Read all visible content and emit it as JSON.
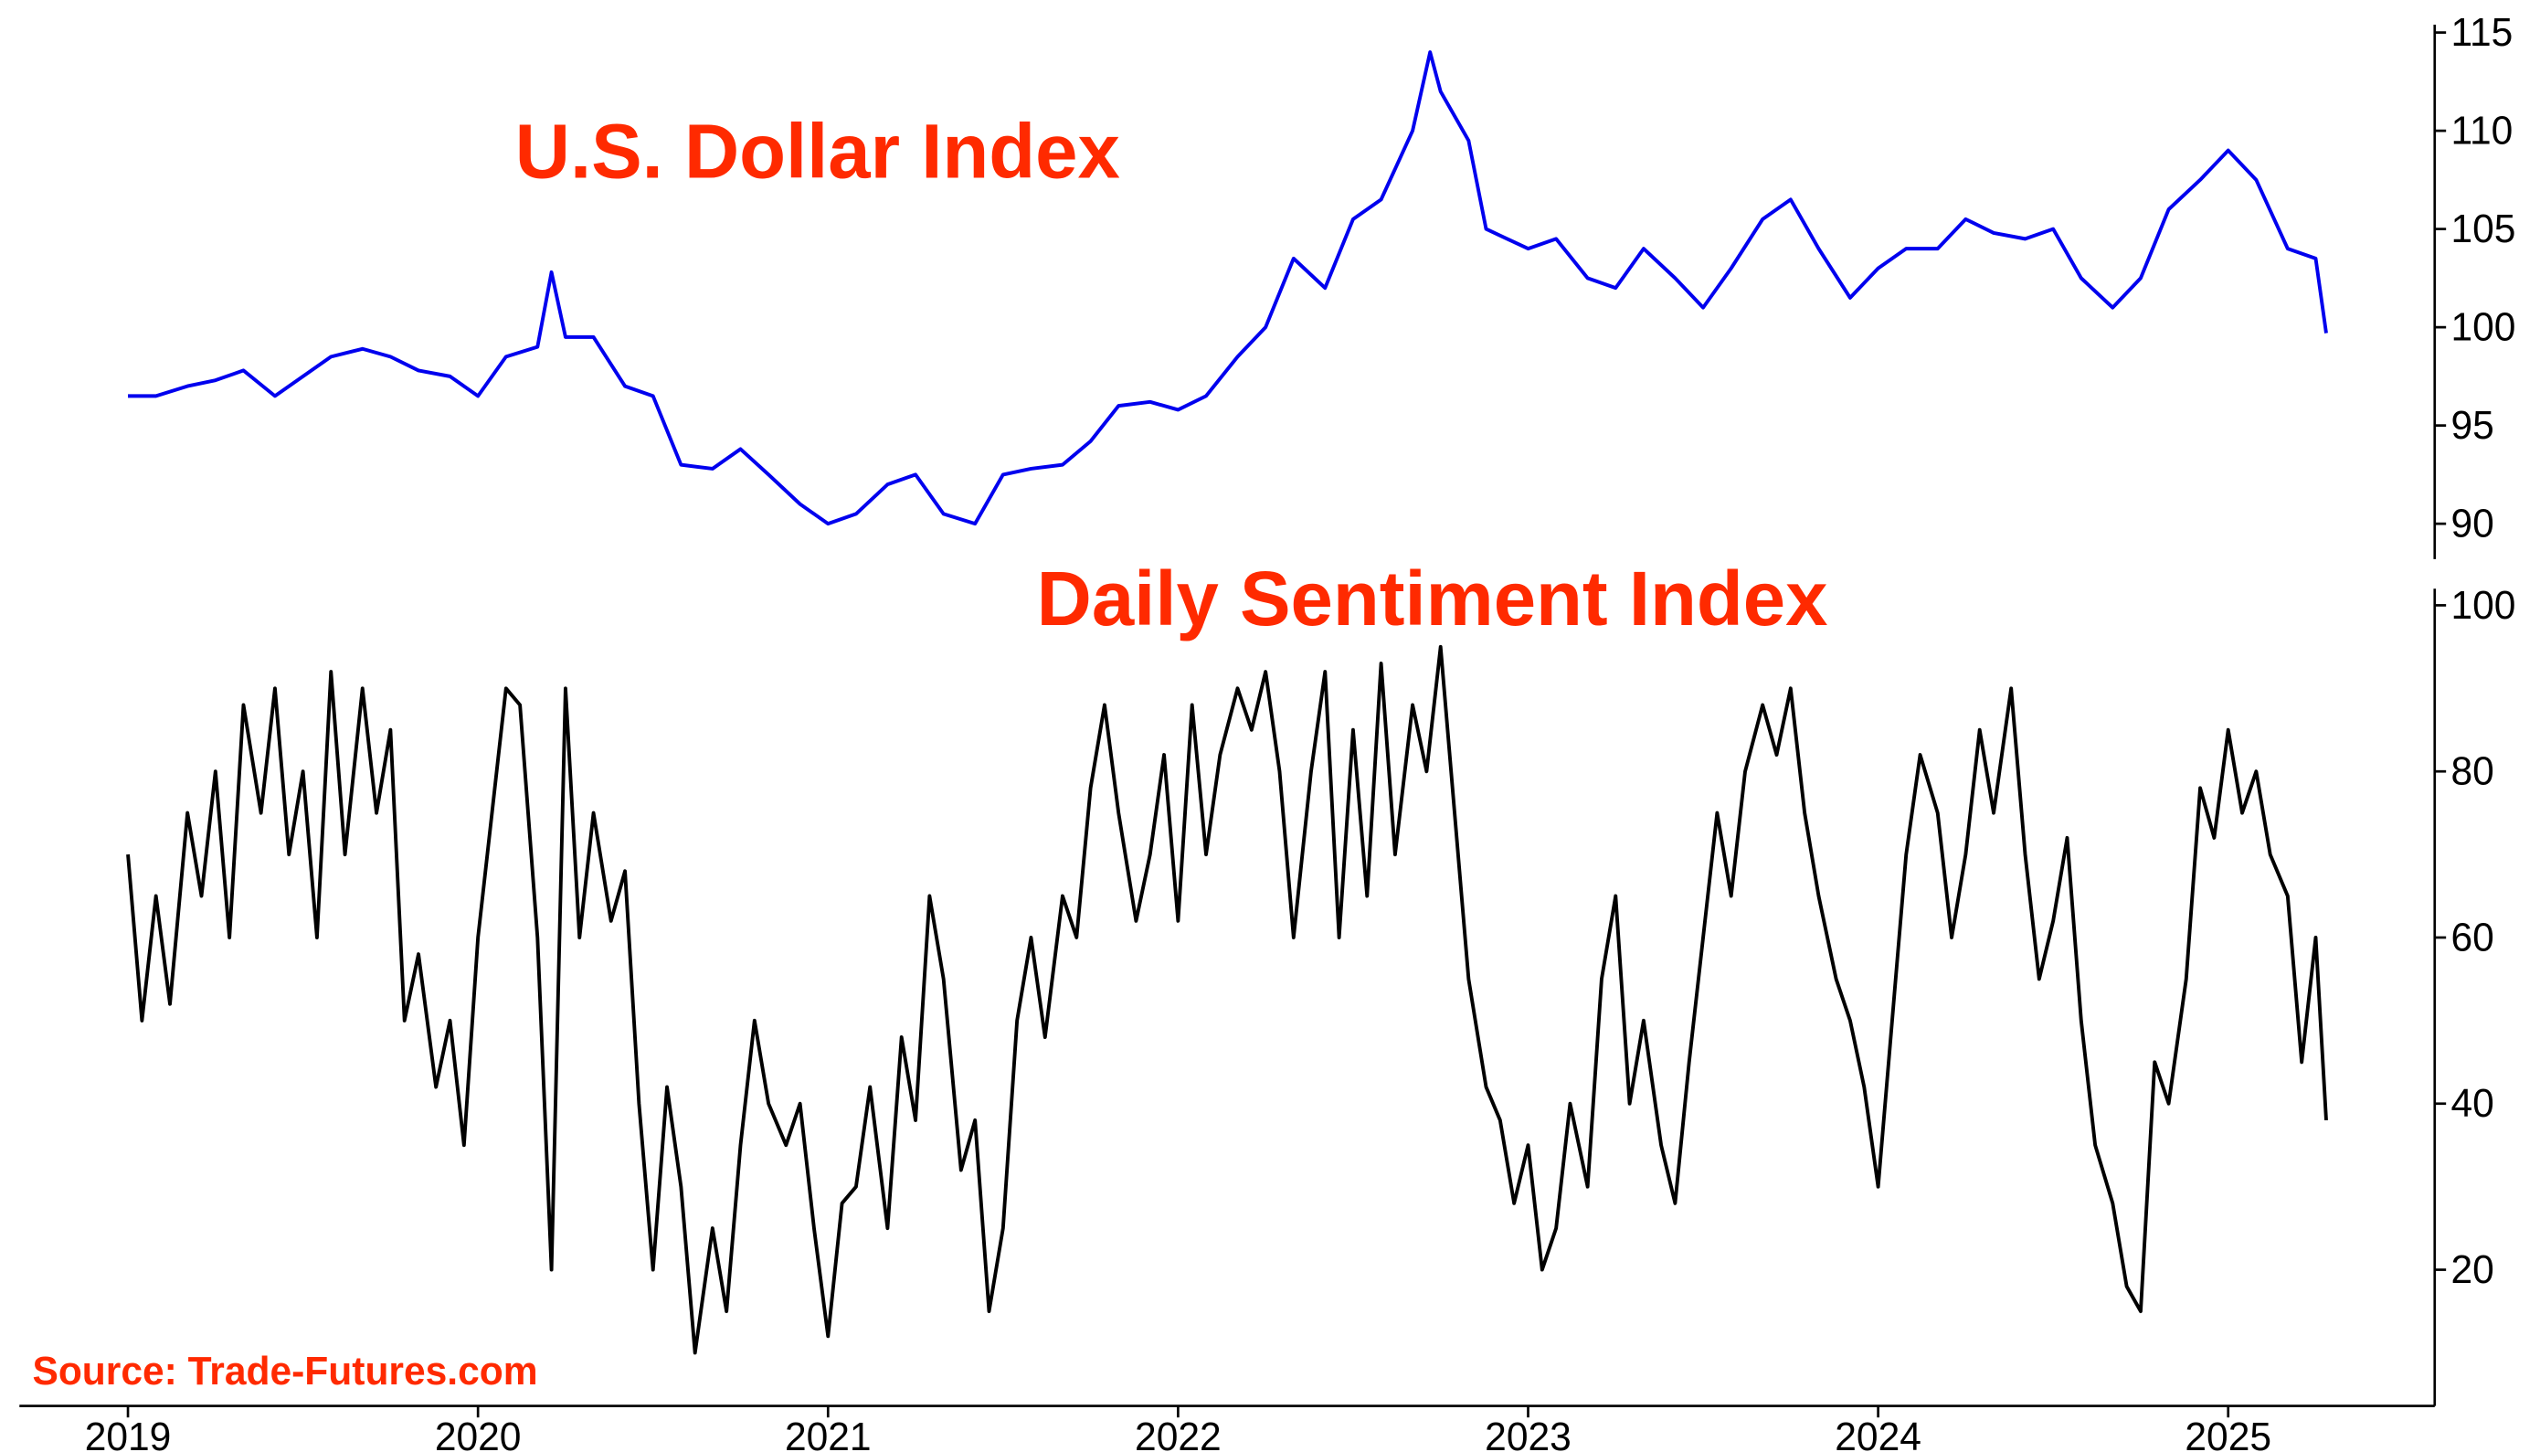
{
  "chart_data": [
    {
      "type": "line",
      "title": "U.S. Dollar Index",
      "color": "#0000ee",
      "x": [
        2019.0,
        2019.08,
        2019.17,
        2019.25,
        2019.33,
        2019.42,
        2019.5,
        2019.58,
        2019.67,
        2019.75,
        2019.83,
        2019.92,
        2020.0,
        2020.08,
        2020.17,
        2020.21,
        2020.25,
        2020.33,
        2020.42,
        2020.5,
        2020.58,
        2020.67,
        2020.75,
        2020.83,
        2020.92,
        2021.0,
        2021.08,
        2021.17,
        2021.25,
        2021.33,
        2021.42,
        2021.5,
        2021.58,
        2021.67,
        2021.75,
        2021.83,
        2021.92,
        2022.0,
        2022.08,
        2022.17,
        2022.25,
        2022.33,
        2022.42,
        2022.5,
        2022.58,
        2022.67,
        2022.72,
        2022.75,
        2022.83,
        2022.88,
        2023.0,
        2023.08,
        2023.17,
        2023.25,
        2023.33,
        2023.42,
        2023.5,
        2023.58,
        2023.67,
        2023.75,
        2023.83,
        2023.92,
        2024.0,
        2024.08,
        2024.17,
        2024.25,
        2024.33,
        2024.42,
        2024.5,
        2024.58,
        2024.67,
        2024.75,
        2024.83,
        2024.92,
        2025.0,
        2025.08,
        2025.17,
        2025.25,
        2025.28
      ],
      "values": [
        96.5,
        96.5,
        97,
        97.3,
        97.8,
        96.5,
        97.5,
        98.5,
        98.9,
        98.5,
        97.8,
        97.5,
        96.5,
        98.5,
        99,
        102.8,
        99.5,
        99.5,
        97,
        96.5,
        93,
        92.8,
        93.8,
        92.5,
        91,
        90,
        90.5,
        92,
        92.5,
        90.5,
        90,
        92.5,
        92.8,
        93,
        94.2,
        96,
        96.2,
        95.8,
        96.5,
        98.5,
        100,
        103.5,
        102,
        105.5,
        106.5,
        110,
        114,
        112,
        109.5,
        105,
        104,
        104.5,
        102.5,
        102,
        104,
        102.5,
        101,
        103,
        105.5,
        106.5,
        104,
        101.5,
        103,
        104,
        104,
        105.5,
        104.8,
        104.5,
        105,
        102.5,
        101,
        102.5,
        106,
        107.5,
        109,
        107.5,
        104,
        103.5,
        99.7
      ],
      "xlim": [
        2018.69,
        2025.59
      ],
      "ylim": [
        88.2,
        115.4
      ],
      "yticks": [
        90,
        95,
        100,
        105,
        110,
        115
      ]
    },
    {
      "type": "line",
      "title": "Daily Sentiment Index",
      "color": "#000000",
      "x": [
        2019.0,
        2019.04,
        2019.08,
        2019.12,
        2019.17,
        2019.21,
        2019.25,
        2019.29,
        2019.33,
        2019.38,
        2019.42,
        2019.46,
        2019.5,
        2019.54,
        2019.58,
        2019.62,
        2019.67,
        2019.71,
        2019.75,
        2019.79,
        2019.83,
        2019.88,
        2019.92,
        2019.96,
        2020.0,
        2020.04,
        2020.08,
        2020.12,
        2020.17,
        2020.21,
        2020.25,
        2020.29,
        2020.33,
        2020.38,
        2020.42,
        2020.46,
        2020.5,
        2020.54,
        2020.58,
        2020.62,
        2020.67,
        2020.71,
        2020.75,
        2020.79,
        2020.83,
        2020.88,
        2020.92,
        2020.96,
        2021.0,
        2021.04,
        2021.08,
        2021.12,
        2021.17,
        2021.21,
        2021.25,
        2021.29,
        2021.33,
        2021.38,
        2021.42,
        2021.46,
        2021.5,
        2021.54,
        2021.58,
        2021.62,
        2021.67,
        2021.71,
        2021.75,
        2021.79,
        2021.83,
        2021.88,
        2021.92,
        2021.96,
        2022.0,
        2022.04,
        2022.08,
        2022.12,
        2022.17,
        2022.21,
        2022.25,
        2022.29,
        2022.33,
        2022.38,
        2022.42,
        2022.46,
        2022.5,
        2022.54,
        2022.58,
        2022.62,
        2022.67,
        2022.71,
        2022.75,
        2022.79,
        2022.83,
        2022.88,
        2022.92,
        2022.96,
        2023.0,
        2023.04,
        2023.08,
        2023.12,
        2023.17,
        2023.21,
        2023.25,
        2023.29,
        2023.33,
        2023.38,
        2023.42,
        2023.46,
        2023.5,
        2023.54,
        2023.58,
        2023.62,
        2023.67,
        2023.71,
        2023.75,
        2023.79,
        2023.83,
        2023.88,
        2023.92,
        2023.96,
        2024.0,
        2024.04,
        2024.08,
        2024.12,
        2024.17,
        2024.21,
        2024.25,
        2024.29,
        2024.33,
        2024.38,
        2024.42,
        2024.46,
        2024.5,
        2024.54,
        2024.58,
        2024.62,
        2024.67,
        2024.71,
        2024.75,
        2024.79,
        2024.83,
        2024.88,
        2024.92,
        2024.96,
        2025.0,
        2025.04,
        2025.08,
        2025.12,
        2025.17,
        2025.21,
        2025.25,
        2025.28
      ],
      "values": [
        70,
        50,
        65,
        52,
        75,
        65,
        80,
        60,
        88,
        75,
        90,
        70,
        80,
        60,
        92,
        70,
        90,
        75,
        85,
        50,
        58,
        42,
        50,
        35,
        60,
        75,
        90,
        88,
        60,
        20,
        90,
        60,
        75,
        62,
        68,
        40,
        20,
        42,
        30,
        10,
        25,
        15,
        35,
        50,
        40,
        35,
        40,
        25,
        12,
        28,
        30,
        42,
        25,
        48,
        38,
        65,
        55,
        32,
        38,
        15,
        25,
        50,
        60,
        48,
        65,
        60,
        78,
        88,
        75,
        62,
        70,
        82,
        62,
        88,
        70,
        82,
        90,
        85,
        92,
        80,
        60,
        80,
        92,
        60,
        85,
        65,
        93,
        70,
        88,
        80,
        95,
        75,
        55,
        42,
        38,
        28,
        35,
        20,
        25,
        40,
        30,
        55,
        65,
        40,
        50,
        35,
        28,
        45,
        60,
        75,
        65,
        80,
        88,
        82,
        90,
        75,
        65,
        55,
        50,
        42,
        30,
        50,
        70,
        82,
        75,
        60,
        70,
        85,
        75,
        90,
        70,
        55,
        62,
        72,
        50,
        35,
        28,
        18,
        15,
        45,
        40,
        55,
        78,
        72,
        85,
        75,
        80,
        70,
        65,
        45,
        60,
        38
      ],
      "xlim": [
        2018.69,
        2025.59
      ],
      "ylim": [
        3.6,
        102
      ],
      "yticks": [
        20,
        40,
        60,
        80,
        100
      ],
      "xticks": [
        2019,
        2020,
        2021,
        2022,
        2023,
        2024,
        2025
      ]
    }
  ],
  "source": "Source: Trade-Futures.com"
}
